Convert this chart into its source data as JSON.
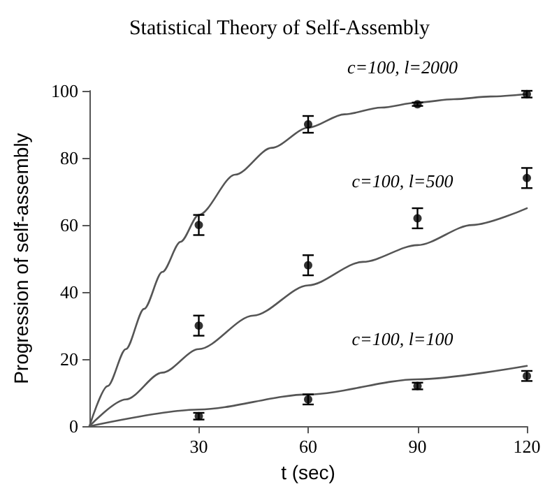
{
  "chart_data": {
    "type": "line",
    "title": "Statistical Theory of Self-Assembly",
    "xlabel": "t (sec)",
    "ylabel": "Progression of self-assembly",
    "xlim": [
      0,
      120
    ],
    "xticks": [
      30,
      60,
      90,
      120
    ],
    "ylim": [
      0,
      100
    ],
    "yticks": [
      0,
      20,
      40,
      60,
      80,
      100
    ],
    "grid": false,
    "marker": "circle",
    "series": [
      {
        "name": "c=100, l=2000",
        "marker": "none",
        "color": "#555555",
        "x": [
          0,
          5,
          10,
          15,
          20,
          25,
          30,
          40,
          50,
          60,
          70,
          80,
          90,
          100,
          110,
          120
        ],
        "values": [
          0,
          12,
          23,
          35,
          46,
          55,
          63,
          75,
          83,
          89,
          93,
          95,
          96.5,
          97.5,
          98.3,
          99
        ]
      },
      {
        "name": "c=100, l=500",
        "marker": "none",
        "color": "#555555",
        "x": [
          0,
          10,
          20,
          30,
          45,
          60,
          75,
          90,
          105,
          120
        ],
        "values": [
          0,
          8,
          16,
          23,
          33,
          42,
          49,
          54,
          60,
          65
        ]
      },
      {
        "name": "c=100, l=100",
        "marker": "none",
        "color": "#555555",
        "x": [
          0,
          30,
          60,
          90,
          120
        ],
        "values": [
          0,
          5,
          9.5,
          14,
          18
        ]
      },
      {
        "type": "scatter",
        "color": "#000000",
        "x": [
          30,
          60,
          90,
          120
        ],
        "values": [
          60,
          90,
          96,
          99
        ],
        "errors": [
          3,
          2.5,
          0.5,
          1
        ]
      },
      {
        "type": "scatter",
        "color": "#000000",
        "x": [
          30,
          60,
          90,
          120
        ],
        "values": [
          30,
          48,
          62,
          74
        ],
        "errors": [
          3,
          3,
          3,
          3
        ]
      },
      {
        "type": "scatter",
        "color": "#000000",
        "x": [
          30,
          60,
          90,
          120
        ],
        "values": [
          3,
          8,
          12,
          15
        ],
        "errors": [
          1,
          1.5,
          1,
          1.5
        ]
      }
    ]
  }
}
